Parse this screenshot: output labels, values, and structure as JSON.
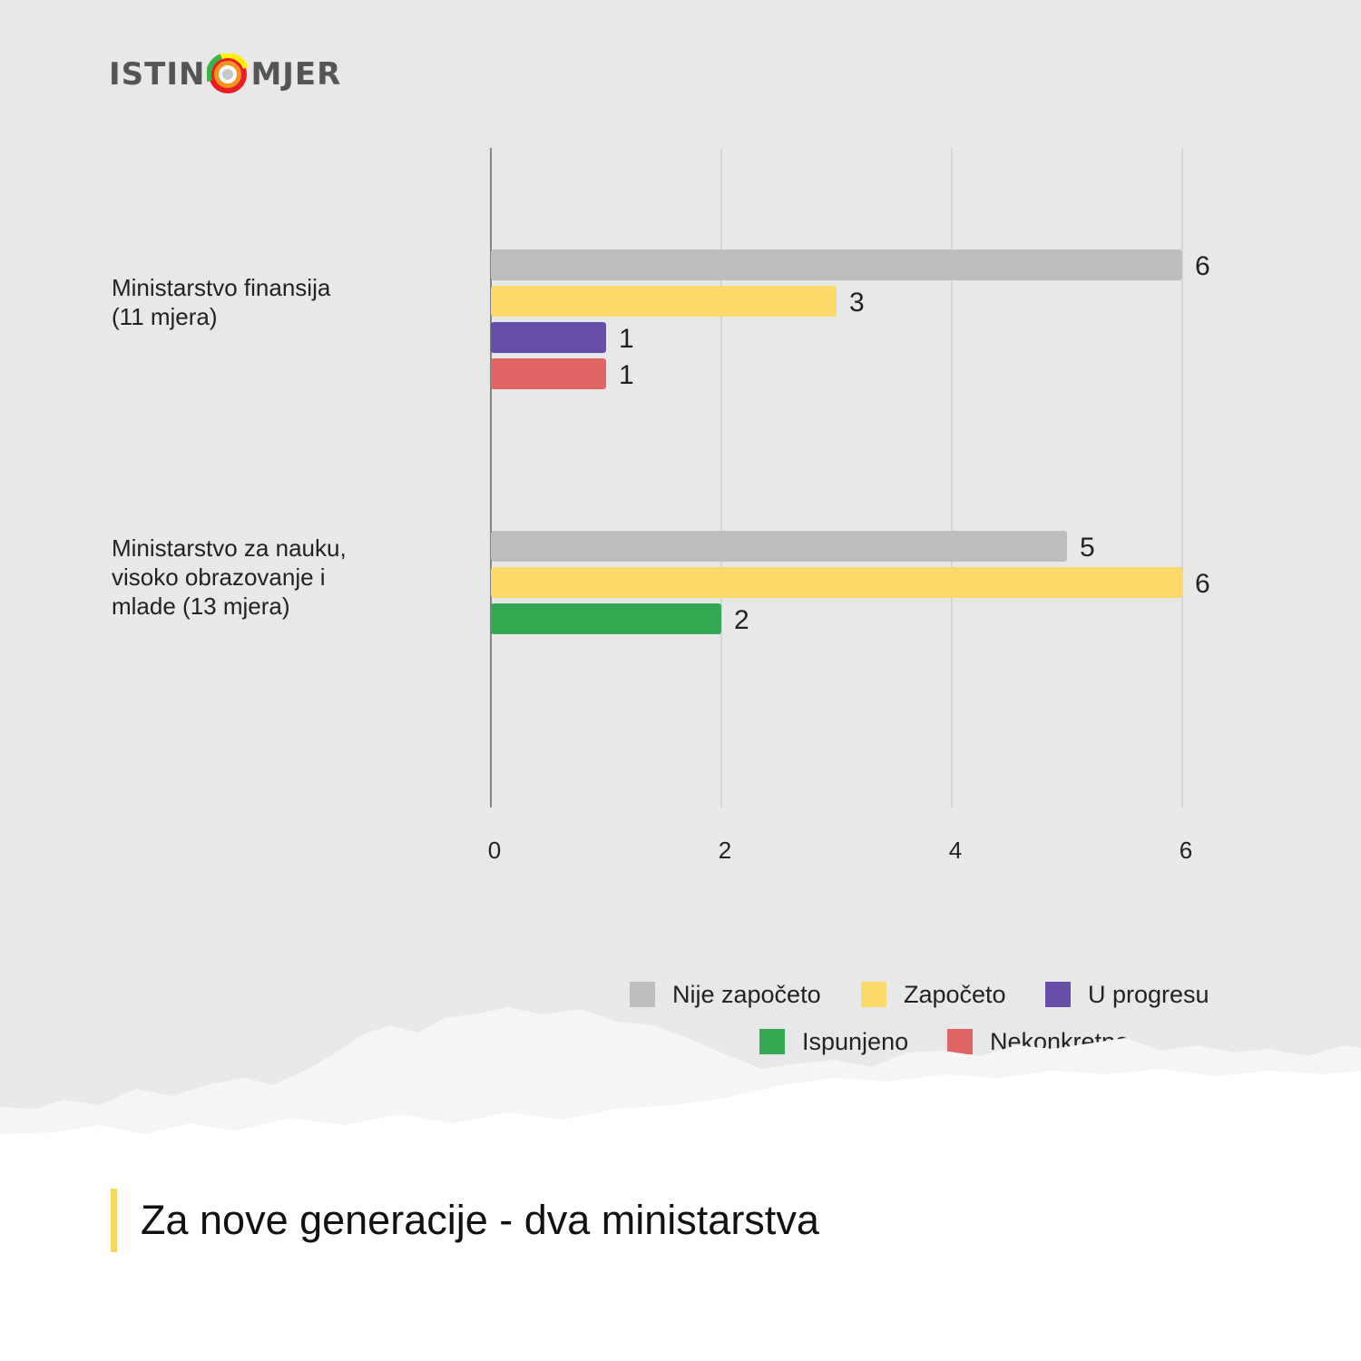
{
  "brand": {
    "logo_left": "ISTIN",
    "logo_right": "MJER",
    "logo_icon": "target-ring-icon",
    "colors": [
      "#ed1c24",
      "#f7941d",
      "#fff200",
      "#39b54a"
    ]
  },
  "chart_data": {
    "type": "bar",
    "orientation": "horizontal",
    "categories": [
      [
        "Ministarstvo finansija",
        "(11 mjera)"
      ],
      [
        "Ministarstvo za nauku,",
        "visoko obrazovanje i",
        "mlade (13 mjera)"
      ]
    ],
    "series": [
      {
        "name": "Nije započeto",
        "color": "#bdbdbd",
        "values": [
          6,
          5
        ]
      },
      {
        "name": "Započeto",
        "color": "#fdd96b",
        "values": [
          3,
          6
        ]
      },
      {
        "name": "U progresu",
        "color": "#674ea7",
        "values": [
          1,
          null
        ]
      },
      {
        "name": "Ispunjeno",
        "color": "#34a853",
        "values": [
          null,
          2
        ]
      },
      {
        "name": "Nekonkretno",
        "color": "#e06666",
        "values": [
          1,
          null
        ]
      }
    ],
    "xlim": [
      0,
      6
    ],
    "xticks": [
      0,
      2,
      4,
      6
    ],
    "grid": true,
    "legend_position": "bottom-right"
  },
  "footer": {
    "title": "Za nove generacije - dva ministarstva",
    "accent_color": "#f6d663"
  }
}
